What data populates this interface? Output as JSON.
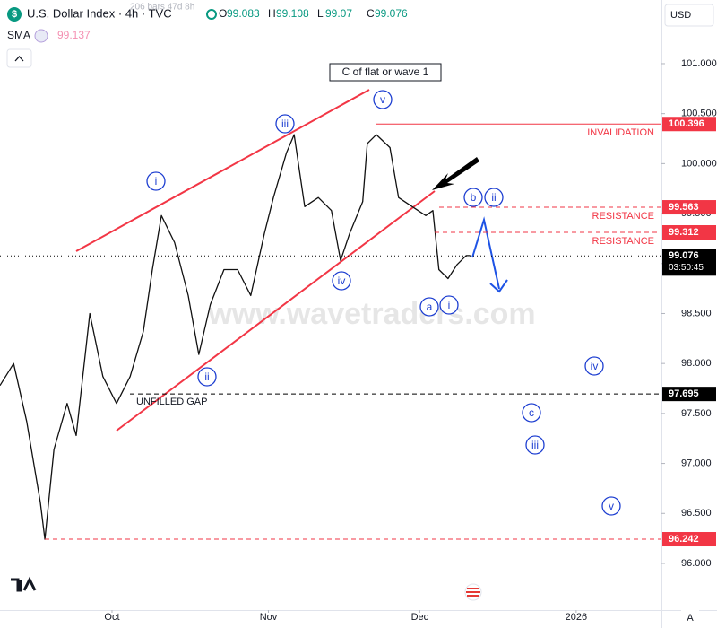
{
  "chart_data": {
    "type": "line",
    "title": "U.S. Dollar Index · 4h · TVC",
    "bars_info": "206 bars   47d 8h",
    "ohlc": [
      {
        "key": "O",
        "value": 99.083
      },
      {
        "key": "H",
        "value": 99.108
      },
      {
        "key": "L",
        "value": 99.07
      },
      {
        "key": "C",
        "value": 99.076
      }
    ],
    "indicator": {
      "name": "SMA",
      "value": 99.137,
      "color": "#f48fb1"
    },
    "currency": "USD",
    "x": [
      -22.2,
      -19.5,
      -16.9,
      -14.2,
      -13.3,
      -11.5,
      -8.9,
      -7.1,
      -4.4,
      -1.8,
      0.9,
      3.6,
      6.2,
      8.0,
      9.8,
      12.4,
      15.1,
      17.2,
      19.5,
      22.2,
      24.9,
      27.5,
      30.2,
      32.0,
      34.6,
      36.1,
      38.2,
      40.9,
      43.5,
      45.3,
      47.1,
      49.7,
      50.6,
      52.4,
      55.1,
      56.8,
      59.5,
      62.2,
      63.6,
      64.8,
      66.6,
      68.4,
      70.2,
      71.0
    ],
    "series": [
      {
        "color": "#111111",
        "values": [
          97.78,
          98.0,
          97.42,
          96.61,
          96.24,
          97.14,
          97.6,
          97.28,
          98.5,
          97.87,
          97.6,
          97.87,
          98.32,
          98.94,
          99.48,
          99.21,
          98.68,
          98.09,
          98.59,
          98.94,
          98.94,
          98.68,
          99.3,
          99.66,
          100.11,
          100.29,
          99.57,
          99.66,
          99.53,
          99.03,
          99.3,
          99.62,
          100.2,
          100.29,
          100.16,
          99.66,
          99.57,
          99.48,
          99.53,
          98.94,
          98.85,
          98.99,
          99.08,
          99.08
        ]
      }
    ],
    "xlim": [
      -22.2,
      108.9
    ],
    "xticks": [
      {
        "value": 0,
        "label": "Oct"
      },
      {
        "value": 31,
        "label": "Nov"
      },
      {
        "value": 61,
        "label": "Dec"
      },
      {
        "value": 92,
        "label": "2026"
      }
    ],
    "ylim": [
      95.533,
      101.637
    ],
    "yticks": [
      {
        "value": 96,
        "label": "96.000"
      },
      {
        "value": 96.5,
        "label": "96.500"
      },
      {
        "value": 97,
        "label": "97.000"
      },
      {
        "value": 97.5,
        "label": "97.500"
      },
      {
        "value": 98,
        "label": "98.000"
      },
      {
        "value": 98.5,
        "label": "98.500"
      },
      {
        "value": 99,
        "label": "99.000"
      },
      {
        "value": 99.5,
        "label": "99.500"
      },
      {
        "value": 100,
        "label": "100.000"
      },
      {
        "value": 100.5,
        "label": "100.500"
      },
      {
        "value": 101,
        "label": "101.000"
      }
    ],
    "levels": [
      {
        "value": 100.396,
        "color": "#f23645",
        "style": "solid",
        "note": "INVALIDATION"
      },
      {
        "value": 99.563,
        "color": "#f23645",
        "style": "dashed",
        "note": "RESISTANCE"
      },
      {
        "value": 99.312,
        "color": "#f23645",
        "style": "dashed",
        "note": "RESISTANCE"
      },
      {
        "value": 99.076,
        "color": "#000000",
        "style": "dotted"
      },
      {
        "value": 97.695,
        "color": "#000000",
        "style": "dashed",
        "note": "UNFILLED GAP"
      },
      {
        "value": 96.242,
        "color": "#f23645",
        "style": "dashed"
      }
    ],
    "countdown": "03:50:45",
    "callout": "C of flat or wave 1",
    "wave_labels": [
      "i",
      "ii",
      "iii",
      "iv",
      "v",
      "a",
      "b",
      "i",
      "ii",
      "c",
      "iii",
      "iv",
      "v"
    ],
    "watermark": "www.wavetraders.com",
    "auto_button": "A"
  }
}
